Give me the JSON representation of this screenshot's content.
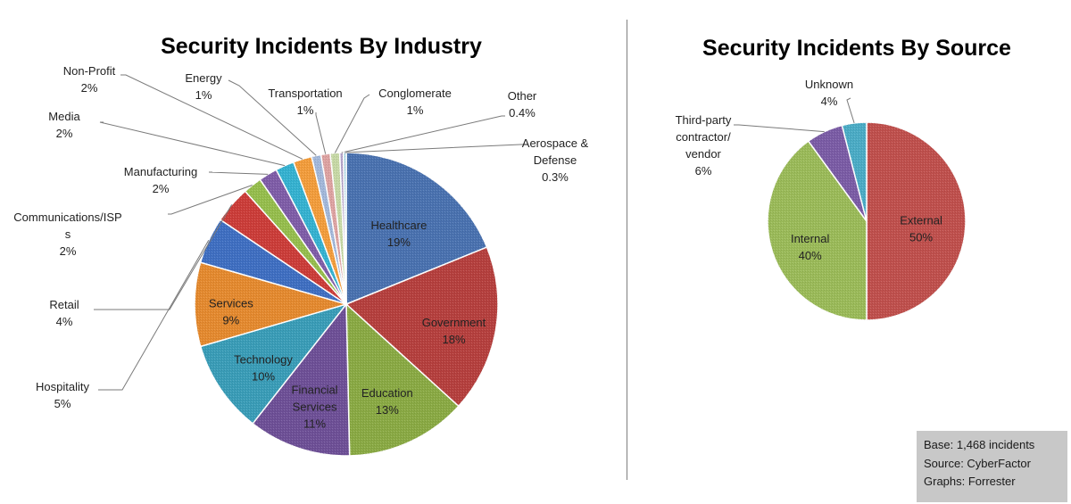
{
  "chart_data": [
    {
      "type": "pie",
      "title": "Security Incidents By Industry",
      "slices": [
        {
          "label": "Healthcare",
          "value": 19,
          "value_label": "19%",
          "color": "#4a72b0"
        },
        {
          "label": "Government",
          "value": 18,
          "value_label": "18%",
          "color": "#b6403e"
        },
        {
          "label": "Education",
          "value": 13,
          "value_label": "13%",
          "color": "#8aaa44"
        },
        {
          "label": "Financial Services",
          "value": 11,
          "value_label": "11%",
          "color": "#6e5097"
        },
        {
          "label": "Technology",
          "value": 10,
          "value_label": "10%",
          "color": "#3a9db8"
        },
        {
          "label": "Services",
          "value": 9,
          "value_label": "9%",
          "color": "#e58a2f"
        },
        {
          "label": "Hospitality",
          "value": 5,
          "value_label": "5%",
          "color": "#3f6fc2"
        },
        {
          "label": "Retail",
          "value": 4,
          "value_label": "4%",
          "color": "#cc3d39"
        },
        {
          "label": "Communications/ISPs",
          "value": 2,
          "value_label": "2%",
          "color": "#96be4d"
        },
        {
          "label": "Manufacturing",
          "value": 2,
          "value_label": "2%",
          "color": "#7f5da8"
        },
        {
          "label": "Media",
          "value": 2,
          "value_label": "2%",
          "color": "#35b2d1"
        },
        {
          "label": "Non-Profit",
          "value": 2,
          "value_label": "2%",
          "color": "#f39d3c"
        },
        {
          "label": "Energy",
          "value": 1,
          "value_label": "1%",
          "color": "#a3b8da"
        },
        {
          "label": "Transportation",
          "value": 1,
          "value_label": "1%",
          "color": "#dea3a2"
        },
        {
          "label": "Conglomerate",
          "value": 1,
          "value_label": "1%",
          "color": "#c7d9a6"
        },
        {
          "label": "Other",
          "value": 0.4,
          "value_label": "0.4%",
          "color": "#b6a7cc"
        },
        {
          "label": "Aerospace & Defense",
          "value": 0.3,
          "value_label": "0.3%",
          "color": "#a2d3e2"
        }
      ]
    },
    {
      "type": "pie",
      "title": "Security Incidents By Source",
      "slices": [
        {
          "label": "External",
          "value": 50,
          "value_label": "50%",
          "color": "#c0504d"
        },
        {
          "label": "Internal",
          "value": 40,
          "value_label": "40%",
          "color": "#9bbb59"
        },
        {
          "label": "Third-party contractor/ vendor",
          "value": 6,
          "value_label": "6%",
          "color": "#7b5ca6"
        },
        {
          "label": "Unknown",
          "value": 4,
          "value_label": "4%",
          "color": "#4bacc6"
        }
      ]
    }
  ],
  "notes": {
    "base": "Base: 1,468 incidents",
    "source": "Source: CyberFactor",
    "graphs": "Graphs: Forrester"
  }
}
